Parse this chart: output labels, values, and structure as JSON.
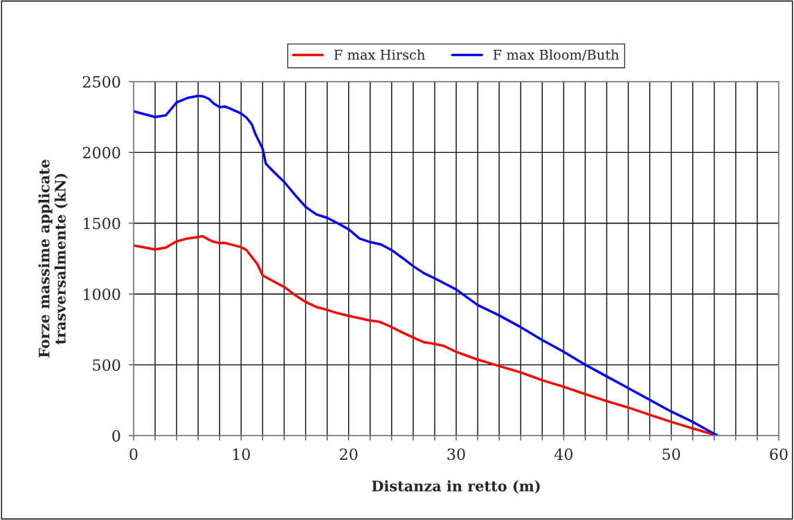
{
  "chart_data": {
    "type": "line",
    "xlabel": "Distanza in retto (m)",
    "ylabel": "Forze massime applicate\ntrasversalmente (kN)",
    "series": [
      {
        "name": "F max Hirsch",
        "color": "#ff0000",
        "x": [
          0,
          2,
          3,
          4,
          5,
          6,
          6.4,
          7.3,
          8,
          8.4,
          9,
          10,
          10.5,
          11,
          11.5,
          12,
          13,
          14,
          15,
          16,
          17,
          18,
          19,
          20,
          21.9,
          22.8,
          23.6,
          24.9,
          26,
          27,
          27.4,
          28.8,
          30,
          32,
          34,
          36,
          38,
          40,
          42,
          44,
          46,
          48,
          50,
          52,
          54.3
        ],
        "values": [
          1343,
          1315,
          1328,
          1372,
          1392,
          1403,
          1408,
          1372,
          1359,
          1362,
          1351,
          1331,
          1310,
          1261,
          1212,
          1132,
          1090,
          1050,
          993,
          944,
          908,
          888,
          864,
          846,
          814,
          805,
          781,
          732,
          693,
          659,
          656,
          635,
          592,
          537,
          491,
          446,
          391,
          345,
          293,
          244,
          198,
          147,
          97,
          51,
          0
        ]
      },
      {
        "name": "F max Bloom/Buth",
        "color": "#0000ff",
        "x": [
          0,
          2,
          3,
          4,
          5,
          6,
          6.5,
          7,
          7.5,
          8,
          8.5,
          9,
          10,
          10.5,
          11,
          11.3,
          12,
          12.3,
          13,
          14,
          15,
          16,
          17,
          18,
          19,
          20,
          21,
          22,
          23,
          24,
          25,
          26,
          27,
          28,
          30,
          32,
          34,
          36,
          38,
          40,
          42,
          44,
          46,
          48,
          50,
          52,
          54.3
        ],
        "values": [
          2290,
          2250,
          2262,
          2353,
          2384,
          2400,
          2395,
          2378,
          2343,
          2319,
          2324,
          2309,
          2275,
          2246,
          2197,
          2134,
          2026,
          1920,
          1865,
          1792,
          1701,
          1615,
          1562,
          1538,
          1499,
          1457,
          1392,
          1367,
          1350,
          1310,
          1255,
          1197,
          1147,
          1111,
          1032,
          922,
          849,
          766,
          675,
          592,
          501,
          418,
          336,
          253,
          170,
          97,
          0
        ]
      }
    ],
    "xlim": [
      0,
      60
    ],
    "xticks": [
      0,
      {
        "value": 2,
        "label": null
      },
      {
        "value": 4,
        "label": null
      },
      {
        "value": 6,
        "label": null
      },
      {
        "value": 8,
        "label": null
      },
      10,
      {
        "value": 12,
        "label": null
      },
      {
        "value": 14,
        "label": null
      },
      {
        "value": 16,
        "label": null
      },
      {
        "value": 18,
        "label": null
      },
      20,
      {
        "value": 22,
        "label": null
      },
      {
        "value": 24,
        "label": null
      },
      {
        "value": 26,
        "label": null
      },
      {
        "value": 28,
        "label": null
      },
      30,
      {
        "value": 32,
        "label": null
      },
      {
        "value": 34,
        "label": null
      },
      {
        "value": 36,
        "label": null
      },
      {
        "value": 38,
        "label": null
      },
      40,
      {
        "value": 42,
        "label": null
      },
      {
        "value": 44,
        "label": null
      },
      {
        "value": 46,
        "label": null
      },
      {
        "value": 48,
        "label": null
      },
      50,
      {
        "value": 52,
        "label": null
      },
      {
        "value": 54,
        "label": null
      },
      {
        "value": 56,
        "label": null
      },
      {
        "value": 58,
        "label": null
      },
      60
    ],
    "ylim": [
      0,
      2500
    ],
    "yticks": [
      0,
      500,
      1000,
      1500,
      2000,
      2500
    ],
    "grid": true,
    "legend": "top",
    "marker": "none",
    "line_style": "solid"
  }
}
